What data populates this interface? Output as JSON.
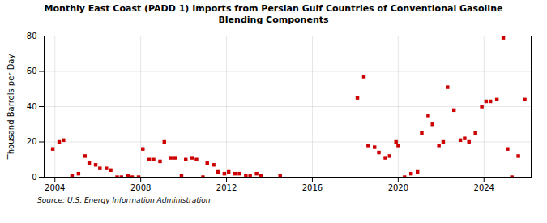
{
  "chart_data": {
    "type": "scatter",
    "title": "Monthly East Coast (PADD 1) Imports from Persian Gulf Countries of Conventional Gasoline\nBlending Components",
    "ylabel": "Thousand Barrels per Day",
    "annotations": [
      "Source: U.S. Energy Information Administration"
    ],
    "color": "#cc0000",
    "marker": "square",
    "grid": true,
    "xlim": [
      2003.5,
      2026.2
    ],
    "ylim": [
      0,
      80
    ],
    "xticks": [
      2004,
      2008,
      2012,
      2016,
      2020,
      2024
    ],
    "yticks": [
      0,
      20,
      40,
      60,
      80
    ],
    "x": [
      2003.9,
      2004.2,
      2004.4,
      2004.8,
      2005.1,
      2005.4,
      2005.6,
      2005.9,
      2006.1,
      2006.4,
      2006.6,
      2006.9,
      2007.1,
      2007.4,
      2007.6,
      2007.9,
      2008.1,
      2008.4,
      2008.6,
      2008.9,
      2009.1,
      2009.4,
      2009.6,
      2009.9,
      2010.1,
      2010.4,
      2010.6,
      2010.9,
      2011.1,
      2011.4,
      2011.6,
      2011.9,
      2012.1,
      2012.4,
      2012.6,
      2012.9,
      2013.1,
      2013.4,
      2013.6,
      2014.5,
      2018.1,
      2018.4,
      2018.6,
      2018.9,
      2019.1,
      2019.4,
      2019.6,
      2019.9,
      2020.0,
      2020.3,
      2020.6,
      2020.9,
      2021.1,
      2021.4,
      2021.6,
      2021.9,
      2022.1,
      2022.3,
      2022.6,
      2022.9,
      2023.1,
      2023.3,
      2023.6,
      2023.9,
      2024.1,
      2024.3,
      2024.6,
      2024.9,
      2025.1,
      2025.3,
      2025.6,
      2025.9
    ],
    "values": [
      16,
      20,
      21,
      1,
      2,
      12,
      8,
      7,
      5,
      5,
      4,
      0,
      0,
      1,
      0,
      0,
      16,
      10,
      10,
      9,
      20,
      11,
      11,
      1,
      10,
      11,
      10,
      0,
      8,
      7,
      3,
      2,
      3,
      2,
      2,
      1,
      1,
      2,
      1,
      1,
      45,
      57,
      18,
      17,
      14,
      11,
      12,
      20,
      18,
      0,
      2,
      3,
      25,
      35,
      30,
      18,
      20,
      51,
      38,
      21,
      22,
      20,
      25,
      40,
      43,
      43,
      44,
      79,
      16,
      0,
      12,
      44
    ]
  }
}
